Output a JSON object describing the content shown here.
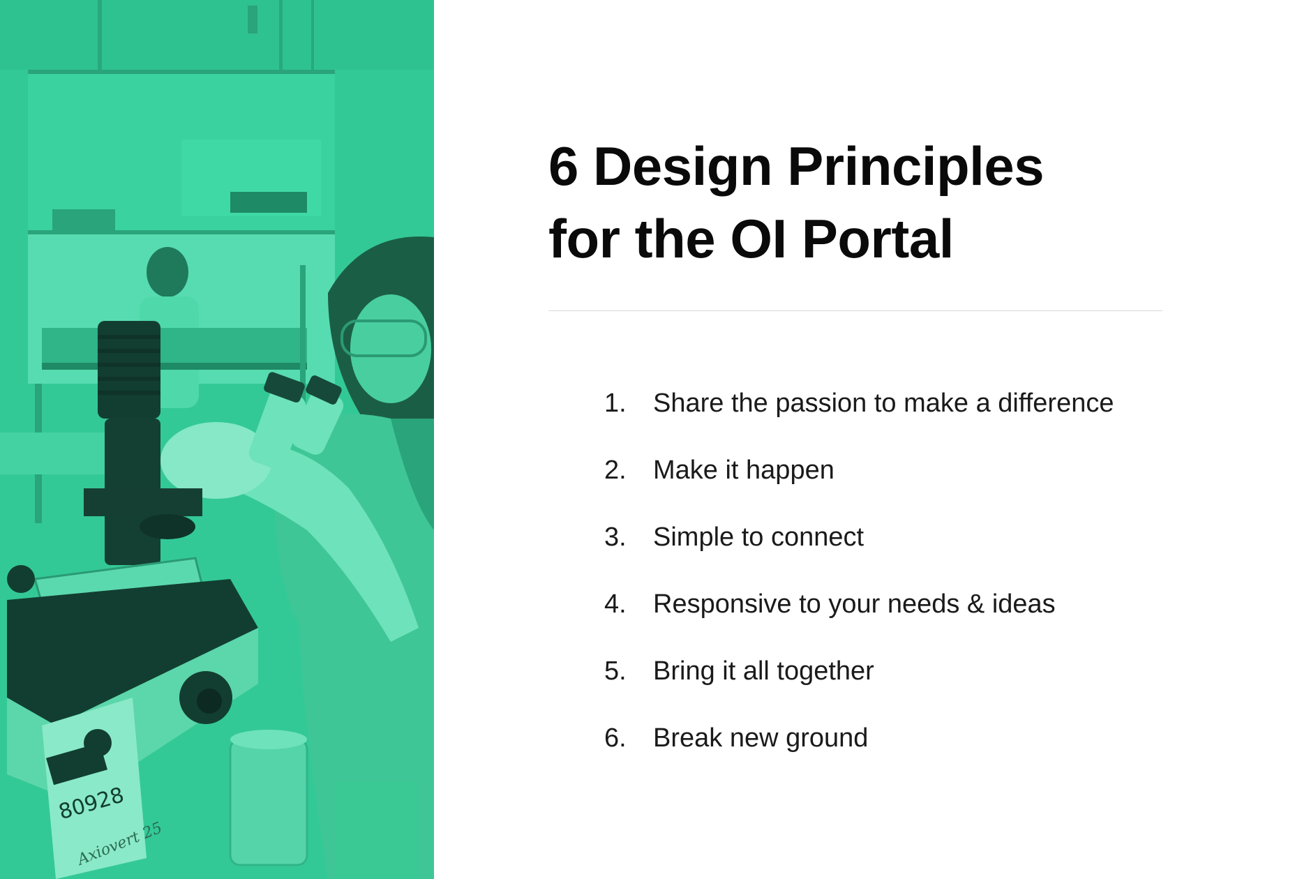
{
  "slide": {
    "title_lines": [
      "6 Design Principles",
      "for the OI Portal"
    ],
    "accent_color": "#33c996",
    "photo": {
      "icon": "lab-scientist-microscope-photo",
      "visible_text": [
        "80928",
        "Axiovert 25"
      ]
    },
    "principles": [
      {
        "number": "1.",
        "text": "Share the passion to make a difference"
      },
      {
        "number": "2.",
        "text": "Make it happen"
      },
      {
        "number": "3.",
        "text": "Simple to connect"
      },
      {
        "number": "4.",
        "text": "Responsive to your needs & ideas"
      },
      {
        "number": "5.",
        "text": "Bring it all together"
      },
      {
        "number": "6.",
        "text": "Break new ground"
      }
    ]
  }
}
